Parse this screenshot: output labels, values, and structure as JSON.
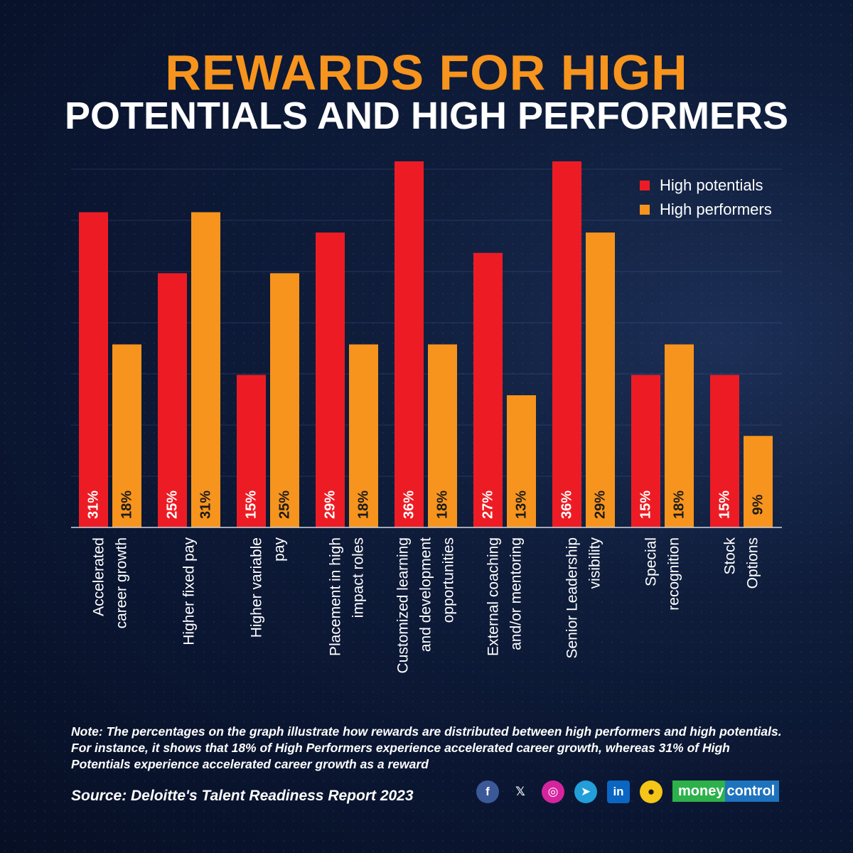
{
  "title": {
    "line1": "REWARDS FOR HIGH",
    "line2": "POTENTIALS AND HIGH PERFORMERS"
  },
  "colors": {
    "high_potentials": "#ed1c24",
    "high_performers": "#f7941d",
    "title_accent": "#f7941d"
  },
  "legend": {
    "placement": "top-right",
    "items": [
      "High potentials",
      "High performers"
    ]
  },
  "chart_data": {
    "type": "bar",
    "categories": [
      [
        "Accelerated",
        "career growth"
      ],
      [
        "Higher fixed pay"
      ],
      [
        "Higher variable",
        "pay"
      ],
      [
        "Placement in high",
        "impact roles"
      ],
      [
        "Customized learning",
        "and development",
        "opportunities"
      ],
      [
        "External coaching",
        "and/or mentoring"
      ],
      [
        "Senior Leadership",
        "visibility"
      ],
      [
        "Special",
        "recognition"
      ],
      [
        "Stock",
        "Options"
      ]
    ],
    "series": [
      {
        "name": "High potentials",
        "values": [
          31,
          25,
          15,
          29,
          36,
          27,
          36,
          15,
          15
        ]
      },
      {
        "name": "High performers",
        "values": [
          18,
          31,
          25,
          18,
          18,
          13,
          29,
          18,
          9
        ]
      }
    ],
    "value_suffix": "%",
    "ylim": [
      0,
      36
    ],
    "grid": true,
    "legend": "top-right"
  },
  "note": "Note: The percentages on the graph illustrate how rewards are distributed between high performers and high potentials. For instance, it shows that 18% of High Performers experience accelerated career growth, whereas 31% of High Potentials experience accelerated career growth as a reward",
  "source": "Source: Deloitte's Talent Readiness Report 2023",
  "footer": {
    "social_icons": [
      "facebook-icon",
      "x-icon",
      "instagram-icon",
      "telegram-icon",
      "linkedin-icon",
      "koo-icon"
    ],
    "social_glyphs": [
      "f",
      "𝕏",
      "◎",
      "➤",
      "in",
      "●"
    ],
    "brand_part1": "money",
    "brand_part2": "control"
  }
}
